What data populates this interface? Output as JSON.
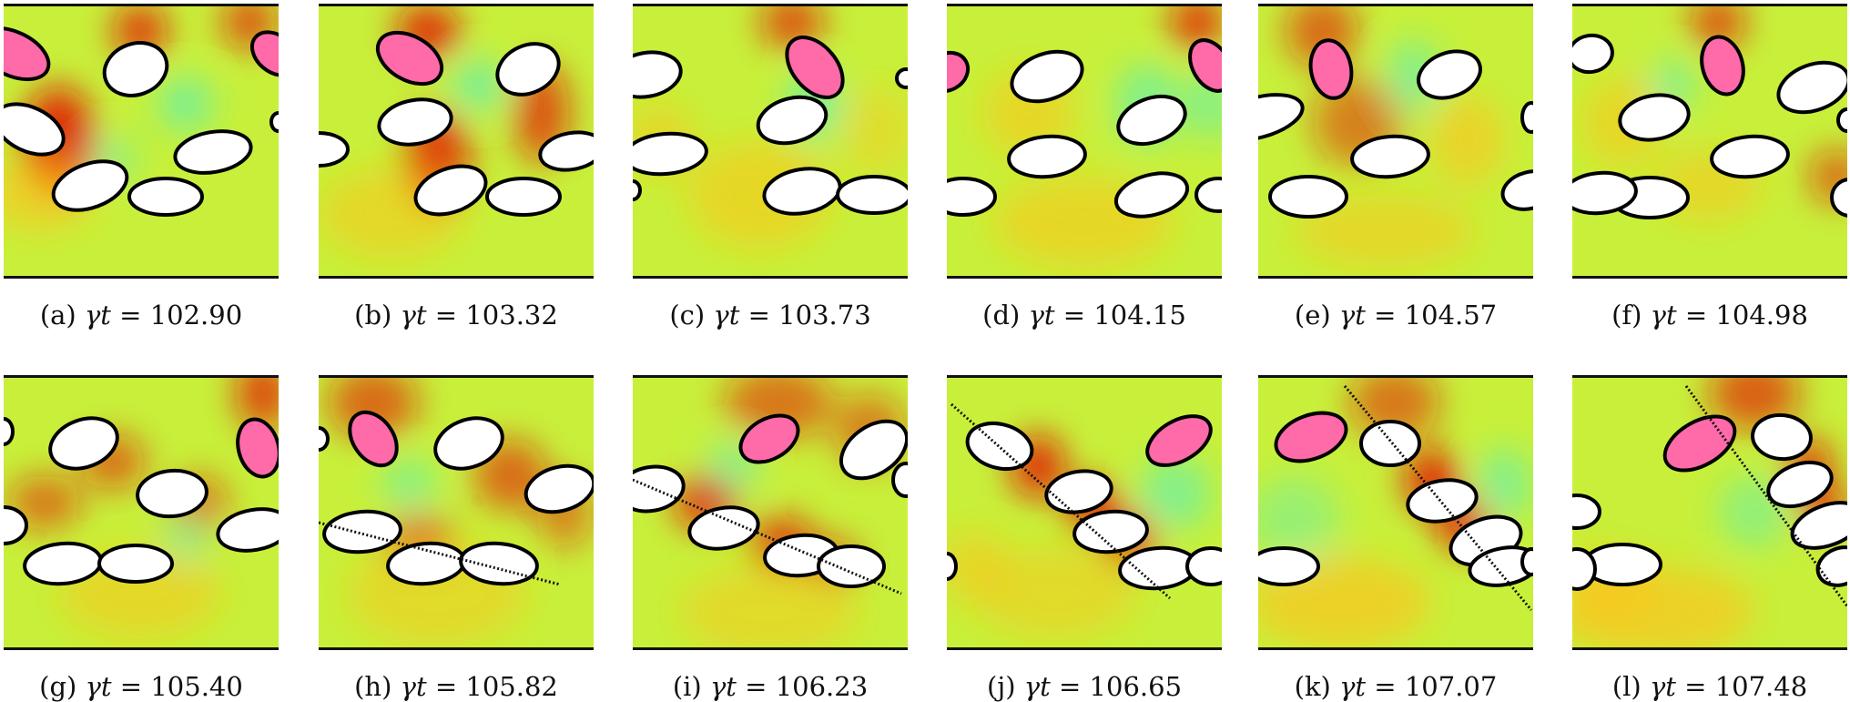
{
  "figure": {
    "colors": {
      "background_field": "#c8f03a",
      "high": "#e30d00",
      "mid": "#ffc21a",
      "low": "#2af0ee",
      "marked_particle": "#ff6aa8",
      "particle": "#ffffff",
      "outline": "#000000"
    },
    "panels": [
      {
        "label": "(a)",
        "symbol": "γt",
        "eq": " = ",
        "value": "102.90"
      },
      {
        "label": "(b)",
        "symbol": "γt",
        "eq": " = ",
        "value": "103.32"
      },
      {
        "label": "(c)",
        "symbol": "γt",
        "eq": " = ",
        "value": "103.73"
      },
      {
        "label": "(d)",
        "symbol": "γt",
        "eq": " = ",
        "value": "104.15"
      },
      {
        "label": "(e)",
        "symbol": "γt",
        "eq": " = ",
        "value": "104.57"
      },
      {
        "label": "(f)",
        "symbol": "γt",
        "eq": " = ",
        "value": "104.98"
      },
      {
        "label": "(g)",
        "symbol": "γt",
        "eq": " = ",
        "value": "105.40"
      },
      {
        "label": "(h)",
        "symbol": "γt",
        "eq": " = ",
        "value": "105.82"
      },
      {
        "label": "(i)",
        "symbol": "γt",
        "eq": " = ",
        "value": "106.23"
      },
      {
        "label": "(j)",
        "symbol": "γt",
        "eq": " = ",
        "value": "106.65"
      },
      {
        "label": "(k)",
        "symbol": "γt",
        "eq": " = ",
        "value": "107.07"
      },
      {
        "label": "(l)",
        "symbol": "γt",
        "eq": " = ",
        "value": "107.48"
      }
    ]
  }
}
